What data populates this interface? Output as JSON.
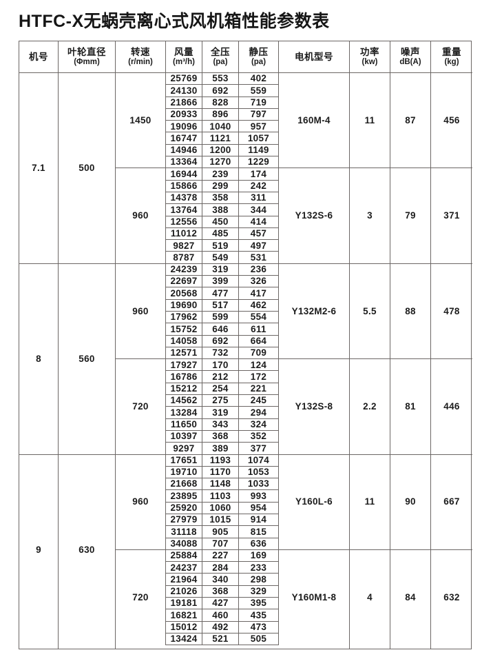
{
  "title": "HTFC-X无蜗壳离心式风机箱性能参数表",
  "colors": {
    "border": "#6b6664",
    "text": "#1b1b1b"
  },
  "table": {
    "columns": [
      {
        "label": "机号",
        "sub": ""
      },
      {
        "label": "叶轮直径",
        "sub": "(Φmm)"
      },
      {
        "label": "转速",
        "sub": "(r/min)"
      },
      {
        "label": "风量",
        "sub": "(m³/h)"
      },
      {
        "label": "全压",
        "sub": "(pa)"
      },
      {
        "label": "静压",
        "sub": "(pa)"
      },
      {
        "label": "电机型号",
        "sub": ""
      },
      {
        "label": "功率",
        "sub": "(kw)"
      },
      {
        "label": "噪声",
        "sub": "dB(A)"
      },
      {
        "label": "重量",
        "sub": "(kg)"
      }
    ],
    "sections": [
      {
        "model": "7.1",
        "diameter": "500",
        "blocks": [
          {
            "speed": "1450",
            "motor": "160M-4",
            "power": "11",
            "noise": "87",
            "weight": "456",
            "rows": [
              [
                "25769",
                "553",
                "402"
              ],
              [
                "24130",
                "692",
                "559"
              ],
              [
                "21866",
                "828",
                "719"
              ],
              [
                "20933",
                "896",
                "797"
              ],
              [
                "19096",
                "1040",
                "957"
              ],
              [
                "16747",
                "1121",
                "1057"
              ],
              [
                "14946",
                "1200",
                "1149"
              ],
              [
                "13364",
                "1270",
                "1229"
              ]
            ]
          },
          {
            "speed": "960",
            "motor": "Y132S-6",
            "power": "3",
            "noise": "79",
            "weight": "371",
            "rows": [
              [
                "16944",
                "239",
                "174"
              ],
              [
                "15866",
                "299",
                "242"
              ],
              [
                "14378",
                "358",
                "311"
              ],
              [
                "13764",
                "388",
                "344"
              ],
              [
                "12556",
                "450",
                "414"
              ],
              [
                "11012",
                "485",
                "457"
              ],
              [
                "9827",
                "519",
                "497"
              ],
              [
                "8787",
                "549",
                "531"
              ]
            ]
          }
        ]
      },
      {
        "model": "8",
        "diameter": "560",
        "blocks": [
          {
            "speed": "960",
            "motor": "Y132M2-6",
            "power": "5.5",
            "noise": "88",
            "weight": "478",
            "rows": [
              [
                "24239",
                "319",
                "236"
              ],
              [
                "22697",
                "399",
                "326"
              ],
              [
                "20568",
                "477",
                "417"
              ],
              [
                "19690",
                "517",
                "462"
              ],
              [
                "17962",
                "599",
                "554"
              ],
              [
                "15752",
                "646",
                "611"
              ],
              [
                "14058",
                "692",
                "664"
              ],
              [
                "12571",
                "732",
                "709"
              ]
            ]
          },
          {
            "speed": "720",
            "motor": "Y132S-8",
            "power": "2.2",
            "noise": "81",
            "weight": "446",
            "rows": [
              [
                "17927",
                "170",
                "124"
              ],
              [
                "16786",
                "212",
                "172"
              ],
              [
                "15212",
                "254",
                "221"
              ],
              [
                "14562",
                "275",
                "245"
              ],
              [
                "13284",
                "319",
                "294"
              ],
              [
                "11650",
                "343",
                "324"
              ],
              [
                "10397",
                "368",
                "352"
              ],
              [
                "9297",
                "389",
                "377"
              ]
            ]
          }
        ]
      },
      {
        "model": "9",
        "diameter": "630",
        "blocks": [
          {
            "speed": "960",
            "motor": "Y160L-6",
            "power": "11",
            "noise": "90",
            "weight": "667",
            "rows": [
              [
                "17651",
                "1193",
                "1074"
              ],
              [
                "19710",
                "1170",
                "1053"
              ],
              [
                "21668",
                "1148",
                "1033"
              ],
              [
                "23895",
                "1103",
                "993"
              ],
              [
                "25920",
                "1060",
                "954"
              ],
              [
                "27979",
                "1015",
                "914"
              ],
              [
                "31118",
                "905",
                "815"
              ],
              [
                "34088",
                "707",
                "636"
              ]
            ]
          },
          {
            "speed": "720",
            "motor": "Y160M1-8",
            "power": "4",
            "noise": "84",
            "weight": "632",
            "rows": [
              [
                "25884",
                "227",
                "169"
              ],
              [
                "24237",
                "284",
                "233"
              ],
              [
                "21964",
                "340",
                "298"
              ],
              [
                "21026",
                "368",
                "329"
              ],
              [
                "19181",
                "427",
                "395"
              ],
              [
                "16821",
                "460",
                "435"
              ],
              [
                "15012",
                "492",
                "473"
              ],
              [
                "13424",
                "521",
                "505"
              ]
            ]
          }
        ]
      }
    ]
  }
}
